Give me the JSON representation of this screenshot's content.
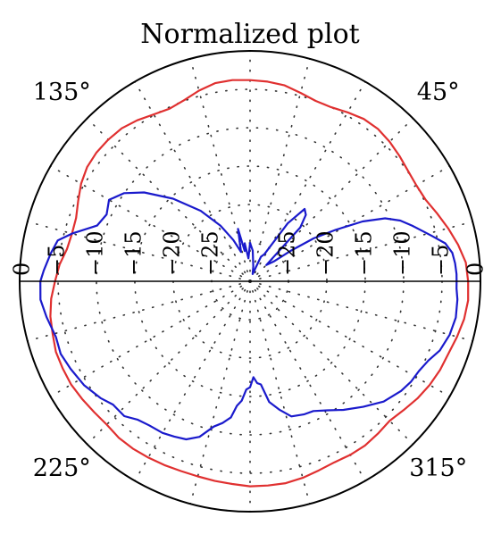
{
  "chart_data": {
    "type": "polar",
    "title": "Normalized plot",
    "radial_axis": {
      "min": -30,
      "max": 0,
      "ticks": [
        0,
        -5,
        -10,
        -15,
        -20,
        -25
      ],
      "tick_labels": [
        "0",
        "−5",
        "−10",
        "−15",
        "−20",
        "−25"
      ],
      "rings": [
        -5,
        -10,
        -15,
        -20,
        -25
      ],
      "grid": "dotted"
    },
    "angular_axis": {
      "labels": [
        {
          "angle": 45,
          "text": "45°"
        },
        {
          "angle": 135,
          "text": "135°"
        },
        {
          "angle": 225,
          "text": "225°"
        },
        {
          "angle": 315,
          "text": "315°"
        }
      ],
      "spoke_step_deg": 15
    },
    "series": [
      {
        "color": "#e03030",
        "points": [
          [
            0,
            -1.6
          ],
          [
            5,
            -1.8
          ],
          [
            10,
            -2.5
          ],
          [
            15,
            -3.3
          ],
          [
            20,
            -4.1
          ],
          [
            25,
            -4.8
          ],
          [
            30,
            -5.0
          ],
          [
            35,
            -4.9
          ],
          [
            40,
            -4.6
          ],
          [
            45,
            -4.3
          ],
          [
            50,
            -4.1
          ],
          [
            55,
            -4.2
          ],
          [
            60,
            -4.6
          ],
          [
            65,
            -5.0
          ],
          [
            70,
            -5.0
          ],
          [
            75,
            -4.6
          ],
          [
            80,
            -4.1
          ],
          [
            85,
            -3.9
          ],
          [
            90,
            -3.8
          ],
          [
            95,
            -3.7
          ],
          [
            100,
            -3.8
          ],
          [
            105,
            -4.3
          ],
          [
            110,
            -4.9
          ],
          [
            115,
            -5.2
          ],
          [
            120,
            -4.9
          ],
          [
            125,
            -4.4
          ],
          [
            130,
            -4.0
          ],
          [
            135,
            -3.9
          ],
          [
            140,
            -3.9
          ],
          [
            145,
            -4.1
          ],
          [
            150,
            -4.6
          ],
          [
            155,
            -5.3
          ],
          [
            160,
            -5.9
          ],
          [
            165,
            -6.0
          ],
          [
            170,
            -5.8
          ],
          [
            175,
            -5.1
          ],
          [
            180,
            -4.6
          ],
          [
            185,
            -4.0
          ],
          [
            190,
            -3.6
          ],
          [
            195,
            -3.4
          ],
          [
            200,
            -3.1
          ],
          [
            205,
            -3.1
          ],
          [
            210,
            -3.1
          ],
          [
            215,
            -3.3
          ],
          [
            220,
            -3.5
          ],
          [
            225,
            -3.6
          ],
          [
            230,
            -3.4
          ],
          [
            235,
            -3.4
          ],
          [
            240,
            -3.5
          ],
          [
            245,
            -3.6
          ],
          [
            250,
            -3.7
          ],
          [
            255,
            -3.7
          ],
          [
            260,
            -3.6
          ],
          [
            265,
            -3.5
          ],
          [
            270,
            -3.3
          ],
          [
            275,
            -3.3
          ],
          [
            280,
            -3.3
          ],
          [
            285,
            -3.5
          ],
          [
            290,
            -3.8
          ],
          [
            295,
            -4.0
          ],
          [
            300,
            -3.9
          ],
          [
            305,
            -3.9
          ],
          [
            310,
            -4.1
          ],
          [
            315,
            -4.3
          ],
          [
            320,
            -3.9
          ],
          [
            325,
            -3.4
          ],
          [
            330,
            -3.0
          ],
          [
            335,
            -2.7
          ],
          [
            340,
            -2.5
          ],
          [
            345,
            -2.1
          ],
          [
            350,
            -1.7
          ],
          [
            355,
            -1.5
          ]
        ]
      },
      {
        "color": "#1a1acc",
        "points": [
          [
            0,
            -3.1
          ],
          [
            2,
            -3.1
          ],
          [
            5,
            -3.2
          ],
          [
            8,
            -3.4
          ],
          [
            11,
            -4.1
          ],
          [
            14,
            -5.6
          ],
          [
            16,
            -6.5
          ],
          [
            19,
            -7.7
          ],
          [
            22,
            -8.9
          ],
          [
            25,
            -10.6
          ],
          [
            28,
            -13.4
          ],
          [
            31,
            -17.0
          ],
          [
            34,
            -20.0
          ],
          [
            37,
            -23.5
          ],
          [
            40,
            -26.0
          ],
          [
            45,
            -27.0
          ],
          [
            47,
            -20.4
          ],
          [
            50,
            -18.7
          ],
          [
            53,
            -18.2
          ],
          [
            57,
            -21.0
          ],
          [
            62,
            -26.0
          ],
          [
            66,
            -26.5
          ],
          [
            70,
            -29.0
          ],
          [
            78,
            -28.0
          ],
          [
            85,
            -26.0
          ],
          [
            90,
            -25.0
          ],
          [
            94,
            -27.0
          ],
          [
            98,
            -25.0
          ],
          [
            100,
            -26.0
          ],
          [
            103,
            -23.0
          ],
          [
            107,
            -26.0
          ],
          [
            112,
            -24.2
          ],
          [
            118,
            -21.8
          ],
          [
            125,
            -18.8
          ],
          [
            133,
            -15.3
          ],
          [
            140,
            -12.0
          ],
          [
            145,
            -10.0
          ],
          [
            150,
            -8.8
          ],
          [
            155,
            -9.4
          ],
          [
            160,
            -8.8
          ],
          [
            165,
            -6.0
          ],
          [
            168,
            -4.4
          ],
          [
            172,
            -3.8
          ],
          [
            177,
            -3.1
          ],
          [
            180,
            -2.7
          ],
          [
            185,
            -2.6
          ],
          [
            190,
            -3.1
          ],
          [
            196,
            -3.7
          ],
          [
            201,
            -3.6
          ],
          [
            206,
            -4.0
          ],
          [
            212,
            -4.5
          ],
          [
            218,
            -5.3
          ],
          [
            222,
            -6.0
          ],
          [
            227,
            -6.0
          ],
          [
            231,
            -6.8
          ],
          [
            235,
            -7.1
          ],
          [
            240,
            -7.2
          ],
          [
            244,
            -7.5
          ],
          [
            248,
            -7.8
          ],
          [
            252,
            -8.7
          ],
          [
            256,
            -10.5
          ],
          [
            259,
            -11.2
          ],
          [
            262,
            -12.1
          ],
          [
            264,
            -13.7
          ],
          [
            266,
            -14.4
          ],
          [
            268,
            -15.9
          ],
          [
            270,
            -16.2
          ],
          [
            272,
            -17.5
          ],
          [
            274,
            -16.7
          ],
          [
            276,
            -16.5
          ],
          [
            279,
            -14.1
          ],
          [
            283,
            -12.8
          ],
          [
            287,
            -11.6
          ],
          [
            292,
            -11.3
          ],
          [
            296,
            -11.2
          ],
          [
            301,
            -10.4
          ],
          [
            306,
            -9.3
          ],
          [
            312,
            -8.0
          ],
          [
            318,
            -6.6
          ],
          [
            324,
            -5.7
          ],
          [
            328,
            -5.3
          ],
          [
            332,
            -5.1
          ],
          [
            336,
            -4.6
          ],
          [
            340,
            -3.7
          ],
          [
            345,
            -3.1
          ],
          [
            350,
            -2.8
          ],
          [
            355,
            -2.9
          ],
          [
            358,
            -3.1
          ]
        ]
      }
    ]
  }
}
